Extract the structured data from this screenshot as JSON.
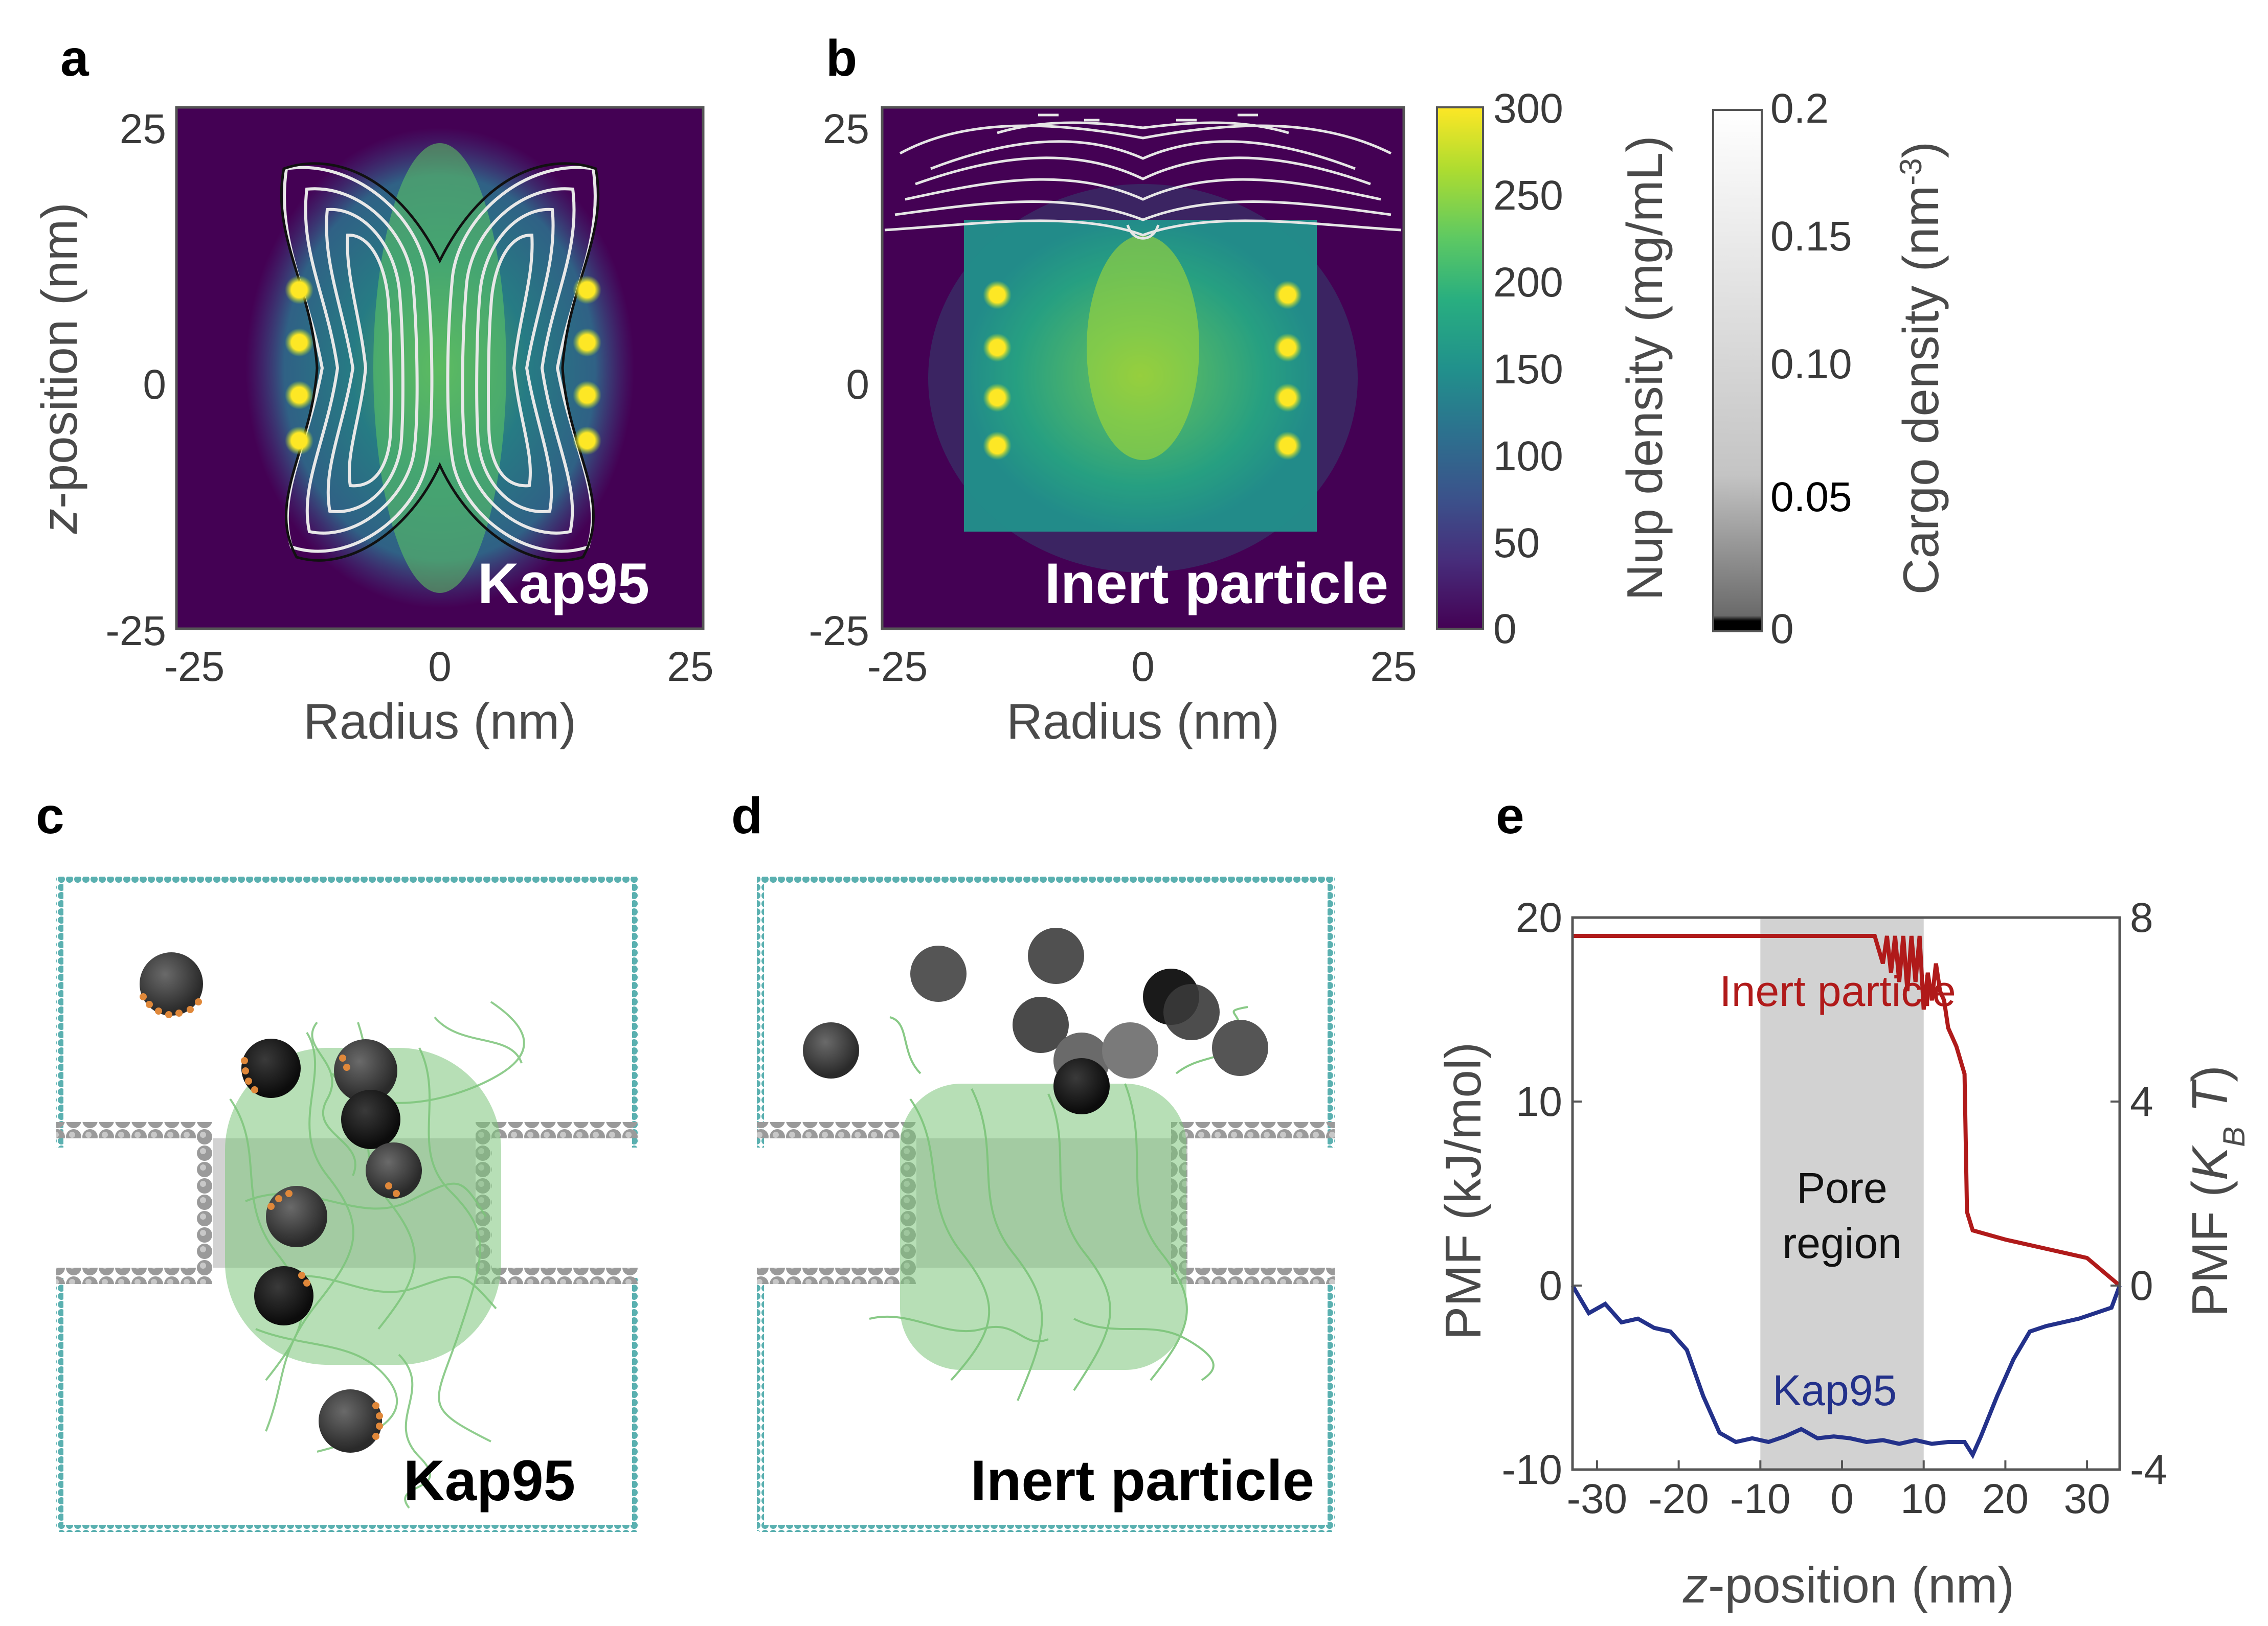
{
  "panels": [
    {
      "id": "a",
      "label": "a",
      "inset": "Kap95"
    },
    {
      "id": "b",
      "label": "b",
      "inset": "Inert particle"
    },
    {
      "id": "c",
      "label": "c",
      "inset": "Kap95"
    },
    {
      "id": "d",
      "label": "d",
      "inset": "Inert particle"
    },
    {
      "id": "e",
      "label": "e"
    }
  ],
  "heatmap_axes": {
    "xlabel": "Radius (nm)",
    "ylabel_italic": "z",
    "ylabel_rest": "-position (nm)",
    "xticks": [
      "-25",
      "0",
      "25"
    ],
    "yticks": [
      "25",
      "0",
      "-25"
    ],
    "xlim": [
      -25,
      25
    ],
    "ylim": [
      -25,
      25
    ]
  },
  "colorbars": {
    "nup": {
      "label": "Nup density (mg/mL)",
      "ticks": [
        "300",
        "250",
        "200",
        "150",
        "100",
        "50",
        "0"
      ],
      "range": [
        0,
        300
      ],
      "colormap": "viridis"
    },
    "cargo": {
      "label_main": "Cargo density (nm",
      "label_sup": "-3",
      "label_close": ")",
      "ticks": [
        "0.2",
        "0.15",
        "0.10",
        "0.05",
        "0"
      ],
      "range": [
        0,
        0.2
      ],
      "colormap": "gray"
    }
  },
  "colors": {
    "viridis_low": "#440154",
    "viridis_mid": "#21918c",
    "viridis_high": "#fde725",
    "wall": "#5ab0b0",
    "pore_gray": "#a0a0a0",
    "fg_green": "#7cc47a",
    "patch_orange": "#e0883a",
    "inert_line": "#b01a1a",
    "kap_line": "#23318a",
    "pore_region_fill": "#d2d2d2"
  },
  "chart_data": [
    {
      "type": "heatmap",
      "panel": "a",
      "title": "Kap95",
      "x_range": [
        -25,
        25
      ],
      "y_range": [
        -25,
        25
      ],
      "description_values": {
        "nup_density_max": 300,
        "cargo_density_max": 0.2
      },
      "anchor_points_x": [
        -14,
        14
      ],
      "anchor_points_z": [
        8,
        3,
        -3,
        -8
      ]
    },
    {
      "type": "heatmap",
      "panel": "b",
      "title": "Inert particle",
      "x_range": [
        -25,
        25
      ],
      "y_range": [
        -25,
        25
      ],
      "description_values": {
        "nup_density_max": 300,
        "cargo_density_max": 0.2
      },
      "anchor_points_x": [
        -14,
        14
      ],
      "anchor_points_z": [
        8,
        3,
        -3,
        -8
      ]
    },
    {
      "type": "line",
      "panel": "e",
      "xlabel_italic": "z",
      "xlabel_rest": "-position (nm)",
      "ylabel_left": "PMF (kJ/mol)",
      "ylabel_right_main": "PMF (",
      "ylabel_right_italic": "K",
      "ylabel_right_sub": "B",
      "ylabel_right_t": " T",
      "ylabel_right_close": ")",
      "xlim": [
        -33,
        34
      ],
      "ylim": [
        -10,
        20
      ],
      "ylim_right": [
        -4,
        8
      ],
      "xticks": [
        "-30",
        "-20",
        "-10",
        "0",
        "10",
        "20",
        "30"
      ],
      "yticks_left": [
        "20",
        "10",
        "0",
        "-10"
      ],
      "yticks_right": [
        "8",
        "4",
        "0",
        "-4"
      ],
      "shaded_region": {
        "x": [
          -10,
          10
        ],
        "label_line1": "Pore",
        "label_line2": "region"
      },
      "series": [
        {
          "name": "Inert particle",
          "color": "#b01a1a",
          "x": [
            -33,
            -20,
            -10,
            0,
            4,
            5,
            5.5,
            6,
            6.5,
            7,
            7.5,
            8,
            8.5,
            9,
            9.5,
            10,
            10.5,
            11,
            11.5,
            12,
            12.5,
            13,
            14,
            15,
            15.3,
            16,
            20,
            25,
            30,
            34
          ],
          "y": [
            19,
            19,
            19,
            19,
            19,
            17.5,
            19,
            17,
            19,
            16.5,
            19,
            16,
            19,
            16.5,
            19,
            15,
            17,
            15.5,
            17.5,
            16,
            15.5,
            14,
            13,
            11.5,
            4,
            3,
            2.5,
            2,
            1.5,
            0
          ]
        },
        {
          "name": "Kap95",
          "color": "#23318a",
          "x": [
            -33,
            -31,
            -29,
            -27,
            -25,
            -23,
            -21,
            -19,
            -17,
            -15,
            -13,
            -11,
            -9,
            -7,
            -5,
            -3,
            -1,
            1,
            3,
            5,
            7,
            9,
            11,
            13,
            15,
            16,
            17,
            19,
            21,
            23,
            25,
            27,
            29,
            31,
            33,
            34
          ],
          "y": [
            0,
            -1.5,
            -1,
            -2,
            -1.8,
            -2.3,
            -2.5,
            -3.5,
            -6,
            -8,
            -8.5,
            -8.3,
            -8.5,
            -8.2,
            -7.8,
            -8.3,
            -8.2,
            -8.3,
            -8.5,
            -8.4,
            -8.6,
            -8.4,
            -8.6,
            -8.5,
            -8.5,
            -9.2,
            -8.2,
            -6,
            -4,
            -2.5,
            -2.2,
            -2,
            -1.8,
            -1.5,
            -1.2,
            0
          ]
        }
      ]
    }
  ]
}
